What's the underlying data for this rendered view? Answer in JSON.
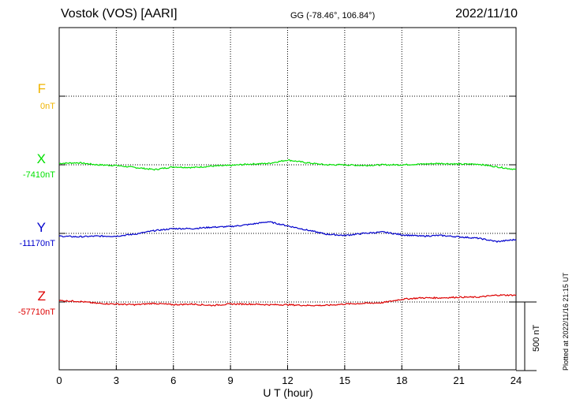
{
  "header": {
    "station": "Vostok (VOS)  [AARI]",
    "coords": "GG (-78.46°, 106.84°)",
    "date": "2022/11/10"
  },
  "footer": {
    "plotted": "Plotted at 2022/11/16 21:15 UT",
    "scale": "500 nT"
  },
  "colors": {
    "F": "#f0b400",
    "X": "#00e000",
    "Y": "#0000cc",
    "Z": "#dd0000"
  },
  "chart_data": {
    "type": "line",
    "xlabel": "U T (hour)",
    "xlim": [
      0,
      24
    ],
    "xticks": [
      0,
      3,
      6,
      9,
      12,
      15,
      18,
      21,
      24
    ],
    "scale_bar_nT": 500,
    "series": [
      {
        "name": "F",
        "base_label": "0nT",
        "x": [],
        "y": []
      },
      {
        "name": "X",
        "base_label": "-7410nT",
        "x": [
          0,
          1,
          2,
          3,
          4,
          5,
          6,
          7,
          8,
          9,
          10,
          11,
          12,
          13,
          14,
          15,
          16,
          17,
          18,
          19,
          20,
          21,
          22,
          23,
          24
        ],
        "y": [
          10,
          15,
          0,
          -5,
          -20,
          -35,
          -15,
          -20,
          -10,
          -5,
          5,
          10,
          35,
          15,
          0,
          0,
          -5,
          0,
          0,
          5,
          10,
          5,
          5,
          -15,
          -35
        ]
      },
      {
        "name": "Y",
        "base_label": "-11170nT",
        "x": [
          0,
          1,
          2,
          3,
          4,
          5,
          6,
          7,
          8,
          9,
          10,
          11,
          12,
          13,
          14,
          15,
          16,
          17,
          18,
          19,
          20,
          21,
          22,
          23,
          24
        ],
        "y": [
          -20,
          -25,
          -20,
          -20,
          -5,
          20,
          35,
          35,
          45,
          50,
          65,
          85,
          55,
          25,
          -5,
          -15,
          0,
          10,
          -10,
          -20,
          -15,
          -25,
          -35,
          -60,
          -45
        ]
      },
      {
        "name": "Z",
        "base_label": "-57710nT",
        "x": [
          0,
          1,
          2,
          3,
          4,
          5,
          6,
          7,
          8,
          9,
          10,
          11,
          12,
          13,
          14,
          15,
          16,
          17,
          18,
          19,
          20,
          21,
          22,
          23,
          24
        ],
        "y": [
          10,
          5,
          -10,
          -15,
          -20,
          -10,
          -20,
          -15,
          -25,
          -15,
          -15,
          -20,
          -20,
          -25,
          -25,
          -15,
          -10,
          -5,
          20,
          30,
          30,
          35,
          35,
          50,
          50
        ]
      }
    ]
  }
}
